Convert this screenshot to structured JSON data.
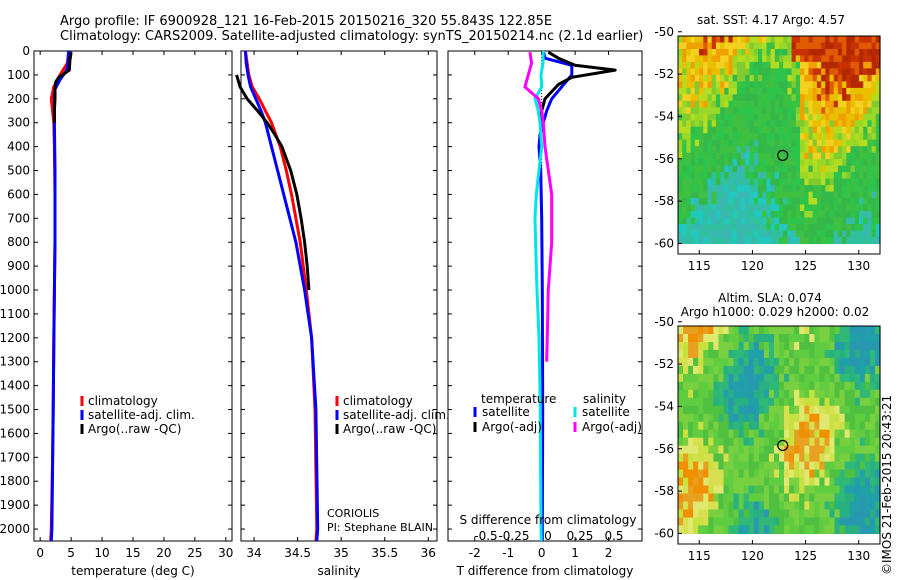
{
  "header": {
    "line1": "Argo profile: IF 6900928_121 16-Feb-2015 20150216_320 55.843S 122.85E",
    "line2": "Climatology: CARS2009. Satellite-adjusted climatology: synTS_20150214.nc (2.1d earlier)"
  },
  "colors": {
    "climatology": "#ff0000",
    "satellite": "#0000ff",
    "argo": "#000000",
    "sat_sal": "#00e5e5",
    "argo_sal": "#ff00ff"
  },
  "chart_data": [
    {
      "type": "line",
      "id": "temperature",
      "xlabel": "temperature (deg C)",
      "ylabel": "",
      "xlim": [
        -1,
        31
      ],
      "ylim": [
        2050,
        0
      ],
      "xticks": [
        0,
        5,
        10,
        15,
        20,
        25,
        30
      ],
      "yticks": [
        0,
        100,
        200,
        300,
        400,
        500,
        600,
        700,
        800,
        900,
        1000,
        1100,
        1200,
        1300,
        1400,
        1500,
        1600,
        1700,
        1800,
        1900,
        2000
      ],
      "legend": [
        "climatology",
        "satellite-adj. clim.",
        "Argo(..raw -QC)"
      ],
      "series": [
        {
          "name": "climatology",
          "color": "#ff0000",
          "depth": [
            0,
            50,
            100,
            150,
            200,
            250,
            300,
            400,
            600,
            800,
            1000,
            1200,
            1500,
            1700,
            2000,
            2050
          ],
          "values": [
            4.6,
            4.4,
            3.2,
            2.2,
            1.8,
            2.0,
            2.2,
            2.3,
            2.4,
            2.4,
            2.3,
            2.2,
            2.1,
            2.0,
            1.8,
            1.7
          ]
        },
        {
          "name": "satellite-adj. clim.",
          "color": "#0000ff",
          "depth": [
            0,
            50,
            80,
            120,
            160,
            200,
            300,
            500,
            800,
            1000,
            1500,
            2000,
            2050
          ],
          "values": [
            4.6,
            4.5,
            4.3,
            3.2,
            2.4,
            2.3,
            2.3,
            2.4,
            2.4,
            2.3,
            2.1,
            1.9,
            1.8
          ]
        },
        {
          "name": "Argo(..raw -QC)",
          "color": "#000000",
          "depth": [
            5,
            40,
            80,
            110,
            130,
            160,
            200,
            250,
            300
          ],
          "values": [
            5.0,
            4.8,
            4.7,
            3.0,
            2.5,
            2.4,
            2.4,
            2.3,
            2.3
          ]
        }
      ]
    },
    {
      "type": "line",
      "id": "salinity",
      "xlabel": "salinity",
      "ylabel": "",
      "xlim": [
        33.85,
        36.1
      ],
      "ylim": [
        2050,
        0
      ],
      "xticks": [
        34,
        34.5,
        35,
        35.5,
        36
      ],
      "legend": [
        "climatology",
        "satellite-adj. clim.",
        "Argo(..raw -QC)"
      ],
      "annotation": [
        "CORIOLIS",
        "PI: Stephane BLAIN"
      ],
      "series": [
        {
          "name": "climatology",
          "color": "#ff0000",
          "depth": [
            0,
            50,
            100,
            150,
            200,
            250,
            300,
            400,
            500,
            600,
            700,
            800,
            1000,
            1200,
            1500,
            2000,
            2050
          ],
          "values": [
            33.9,
            33.92,
            33.94,
            33.98,
            34.06,
            34.13,
            34.2,
            34.3,
            34.37,
            34.43,
            34.48,
            34.53,
            34.6,
            34.66,
            34.7,
            34.72,
            34.71
          ]
        },
        {
          "name": "satellite-adj. clim.",
          "color": "#0000ff",
          "depth": [
            0,
            50,
            100,
            150,
            200,
            250,
            300,
            400,
            500,
            600,
            700,
            800,
            1000,
            1200,
            1500,
            2000,
            2050
          ],
          "values": [
            33.9,
            33.91,
            33.93,
            33.96,
            34.02,
            34.08,
            34.13,
            34.2,
            34.27,
            34.34,
            34.41,
            34.48,
            34.58,
            34.66,
            34.71,
            34.73,
            34.72
          ]
        },
        {
          "name": "Argo(..raw -QC)",
          "color": "#000000",
          "depth": [
            100,
            150,
            200,
            250,
            300,
            350,
            400,
            500,
            600,
            700,
            800,
            900,
            1000
          ],
          "values": [
            33.8,
            33.84,
            33.92,
            34.04,
            34.15,
            34.24,
            34.32,
            34.42,
            34.49,
            34.54,
            34.58,
            34.61,
            34.63
          ]
        }
      ]
    },
    {
      "type": "line",
      "id": "difference",
      "xlabel": "T difference from climatology",
      "xlabel2": "S difference from climatology",
      "xlim": [
        -2.8,
        3.0
      ],
      "ylim": [
        2050,
        0
      ],
      "xticks": [
        -2,
        -1,
        0,
        1,
        2
      ],
      "xticks_s": [
        "-0.5",
        "-0.25",
        "0",
        "0.25",
        "0.5"
      ],
      "legend_header": [
        "temperature",
        "salinity"
      ],
      "legend": [
        "satellite",
        "Argo(-adj)",
        "satellite",
        "Argo(-adj)"
      ],
      "series": [
        {
          "name": "temperature satellite",
          "color": "#0000ff",
          "depth": [
            0,
            30,
            60,
            100,
            150,
            200,
            250,
            300,
            350,
            400,
            500,
            700,
            1000,
            1500,
            2000,
            2050
          ],
          "values": [
            0.05,
            0.1,
            0.9,
            0.9,
            0.6,
            0.3,
            0.15,
            0.05,
            -0.05,
            -0.08,
            -0.03,
            0.0,
            0.02,
            0.03,
            0.02,
            0.02
          ]
        },
        {
          "name": "temperature Argo(-adj)",
          "color": "#000000",
          "depth": [
            5,
            30,
            60,
            80,
            110,
            140,
            170,
            200,
            250,
            300
          ],
          "values": [
            0.2,
            0.5,
            1.0,
            2.2,
            0.9,
            0.5,
            0.3,
            0.1,
            0.0,
            -0.05
          ]
        },
        {
          "name": "salinity satellite",
          "color": "#00e5e5",
          "depth": [
            0,
            50,
            100,
            150,
            200,
            250,
            300,
            400,
            500,
            600,
            700,
            800,
            1000,
            1200,
            1500,
            2000,
            2050
          ],
          "values": [
            0.05,
            0.04,
            -0.02,
            0.0,
            -0.2,
            -0.1,
            -0.05,
            0.0,
            -0.08,
            -0.16,
            -0.2,
            -0.18,
            -0.14,
            -0.08,
            -0.04,
            -0.02,
            -0.01
          ]
        },
        {
          "name": "salinity Argo(-adj)",
          "color": "#ff00ff",
          "depth": [
            5,
            50,
            100,
            150,
            200,
            250,
            300,
            400,
            500,
            600,
            800,
            1000,
            1300
          ],
          "values": [
            -0.35,
            -0.3,
            -0.4,
            -0.5,
            -0.1,
            0.0,
            0.05,
            0.1,
            0.2,
            0.3,
            0.3,
            0.2,
            0.15
          ]
        }
      ]
    },
    {
      "type": "heatmap",
      "id": "sst",
      "title": "sat. SST: 4.17 Argo: 4.57",
      "xlim": [
        113,
        132
      ],
      "ylim": [
        -60.5,
        -50.2
      ],
      "xticks": [
        115,
        120,
        125,
        130
      ],
      "yticks": [
        -50,
        -52,
        -54,
        -56,
        -58,
        -60
      ],
      "marker": {
        "lon": 122.85,
        "lat": -55.843
      }
    },
    {
      "type": "heatmap",
      "id": "sla",
      "title": "Altim. SLA: 0.074",
      "subtitle": "Argo h1000: 0.029 h2000: 0.02",
      "xlim": [
        113,
        132
      ],
      "ylim": [
        -60.5,
        -50.2
      ],
      "xticks": [
        115,
        120,
        125,
        130
      ],
      "yticks": [
        -50,
        -52,
        -54,
        -56,
        -58,
        -60
      ],
      "marker": {
        "lon": 122.85,
        "lat": -55.843
      }
    }
  ],
  "footer": {
    "stamp": "©IMOS 21-Feb-2015 20:43:21"
  }
}
